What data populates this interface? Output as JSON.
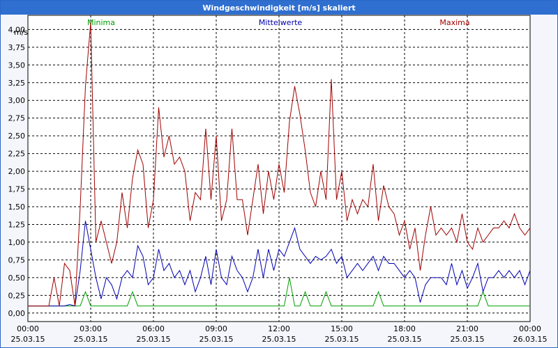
{
  "chart_data": {
    "type": "line",
    "title": "Windgeschwindigkeit [m/s] skaliert",
    "y_label": "m/s",
    "xlim": [
      0,
      24
    ],
    "ylim": [
      -0.12,
      4.2
    ],
    "grid": true,
    "xticks": [
      {
        "value": 0,
        "label": "00:00\n25.03.15"
      },
      {
        "value": 3,
        "label": "03:00\n25.03.15"
      },
      {
        "value": 6,
        "label": "06:00\n25.03.15"
      },
      {
        "value": 9,
        "label": "09:00\n25.03.15"
      },
      {
        "value": 12,
        "label": "12:00\n25.03.15"
      },
      {
        "value": 15,
        "label": "15:00\n25.03.15"
      },
      {
        "value": 18,
        "label": "18:00\n25.03.15"
      },
      {
        "value": 21,
        "label": "21:00\n25.03.15"
      },
      {
        "value": 24,
        "label": "00:00\n26.03.15"
      }
    ],
    "yticks": [
      {
        "value": 0,
        "label": "0,00"
      },
      {
        "value": 0.25,
        "label": "0,25"
      },
      {
        "value": 0.5,
        "label": "0,50"
      },
      {
        "value": 0.75,
        "label": "0,75"
      },
      {
        "value": 1,
        "label": "1,00"
      },
      {
        "value": 1.25,
        "label": "1,25"
      },
      {
        "value": 1.5,
        "label": "1,50"
      },
      {
        "value": 1.75,
        "label": "1,75"
      },
      {
        "value": 2,
        "label": "2,00"
      },
      {
        "value": 2.25,
        "label": "2,25"
      },
      {
        "value": 2.5,
        "label": "2,50"
      },
      {
        "value": 2.75,
        "label": "2,75"
      },
      {
        "value": 3,
        "label": "3,00"
      },
      {
        "value": 3.25,
        "label": "3,25"
      },
      {
        "value": 3.5,
        "label": "3,50"
      },
      {
        "value": 3.75,
        "label": "3,75"
      },
      {
        "value": 4,
        "label": "4,00"
      }
    ],
    "x": [
      0,
      0.25,
      0.5,
      0.75,
      1,
      1.25,
      1.5,
      1.75,
      2,
      2.25,
      2.5,
      2.75,
      3,
      3.25,
      3.5,
      3.75,
      4,
      4.25,
      4.5,
      4.75,
      5,
      5.25,
      5.5,
      5.75,
      6,
      6.25,
      6.5,
      6.75,
      7,
      7.25,
      7.5,
      7.75,
      8,
      8.25,
      8.5,
      8.75,
      9,
      9.25,
      9.5,
      9.75,
      10,
      10.25,
      10.5,
      10.75,
      11,
      11.25,
      11.5,
      11.75,
      12,
      12.25,
      12.5,
      12.75,
      13,
      13.25,
      13.5,
      13.75,
      14,
      14.25,
      14.5,
      14.75,
      15,
      15.25,
      15.5,
      15.75,
      16,
      16.25,
      16.5,
      16.75,
      17,
      17.25,
      17.5,
      17.75,
      18,
      18.25,
      18.5,
      18.75,
      19,
      19.25,
      19.5,
      19.75,
      20,
      20.25,
      20.5,
      20.75,
      21,
      21.25,
      21.5,
      21.75,
      22,
      22.25,
      22.5,
      22.75,
      23,
      23.25,
      23.5,
      23.75,
      24
    ],
    "series": [
      {
        "name": "Minima",
        "color": "#00a000",
        "values": [
          0.1,
          0.1,
          0.1,
          0.1,
          0.1,
          0.1,
          0.1,
          0.1,
          0.1,
          0.1,
          0.1,
          0.3,
          0.1,
          0.1,
          0.1,
          0.1,
          0.1,
          0.1,
          0.1,
          0.1,
          0.3,
          0.1,
          0.1,
          0.1,
          0.1,
          0.1,
          0.1,
          0.1,
          0.1,
          0.1,
          0.1,
          0.1,
          0.1,
          0.1,
          0.1,
          0.1,
          0.1,
          0.1,
          0.1,
          0.1,
          0.1,
          0.1,
          0.1,
          0.1,
          0.1,
          0.1,
          0.1,
          0.1,
          0.1,
          0.1,
          0.5,
          0.1,
          0.1,
          0.3,
          0.1,
          0.1,
          0.1,
          0.3,
          0.1,
          0.1,
          0.1,
          0.1,
          0.1,
          0.1,
          0.1,
          0.1,
          0.1,
          0.3,
          0.1,
          0.1,
          0.1,
          0.1,
          0.1,
          0.1,
          0.1,
          0.1,
          0.1,
          0.1,
          0.1,
          0.1,
          0.1,
          0.1,
          0.1,
          0.1,
          0.1,
          0.1,
          0.1,
          0.3,
          0.1,
          0.1,
          0.1,
          0.1,
          0.1,
          0.1,
          0.1,
          0.1,
          0.1
        ]
      },
      {
        "name": "Mittelwerte",
        "color": "#0000b0",
        "values": [
          0.1,
          0.1,
          0.1,
          0.1,
          0.1,
          0.1,
          0.1,
          0.1,
          0.12,
          0.1,
          0.6,
          1.3,
          0.9,
          0.5,
          0.2,
          0.5,
          0.4,
          0.2,
          0.5,
          0.6,
          0.5,
          0.95,
          0.8,
          0.4,
          0.5,
          0.9,
          0.6,
          0.7,
          0.5,
          0.6,
          0.4,
          0.6,
          0.3,
          0.5,
          0.8,
          0.4,
          0.9,
          0.5,
          0.4,
          0.8,
          0.6,
          0.5,
          0.3,
          0.5,
          0.9,
          0.5,
          0.9,
          0.6,
          0.9,
          0.8,
          1.0,
          1.2,
          0.9,
          0.8,
          0.7,
          0.8,
          0.75,
          0.8,
          0.9,
          0.7,
          0.8,
          0.5,
          0.6,
          0.7,
          0.6,
          0.7,
          0.8,
          0.6,
          0.8,
          0.7,
          0.7,
          0.6,
          0.5,
          0.6,
          0.5,
          0.15,
          0.4,
          0.5,
          0.5,
          0.5,
          0.4,
          0.7,
          0.4,
          0.6,
          0.35,
          0.5,
          0.7,
          0.3,
          0.5,
          0.5,
          0.6,
          0.5,
          0.6,
          0.5,
          0.6,
          0.4,
          0.6
        ]
      },
      {
        "name": "Maxima",
        "color": "#a00000",
        "values": [
          0.1,
          0.1,
          0.1,
          0.1,
          0.1,
          0.5,
          0.1,
          0.7,
          0.6,
          0.1,
          1.5,
          3.2,
          4.1,
          1.0,
          1.3,
          1.0,
          0.7,
          1.0,
          1.7,
          1.2,
          1.9,
          2.3,
          2.1,
          1.2,
          1.6,
          2.9,
          2.2,
          2.5,
          2.1,
          2.2,
          2.0,
          1.3,
          1.7,
          1.6,
          2.6,
          1.6,
          2.5,
          1.3,
          1.6,
          2.6,
          1.6,
          1.6,
          1.1,
          1.6,
          2.1,
          1.4,
          2.0,
          1.6,
          2.1,
          1.7,
          2.7,
          3.2,
          2.8,
          2.3,
          1.7,
          1.5,
          2.0,
          1.6,
          3.3,
          1.6,
          2.0,
          1.3,
          1.6,
          1.4,
          1.6,
          1.5,
          2.1,
          1.3,
          1.8,
          1.5,
          1.4,
          1.1,
          1.3,
          0.9,
          1.2,
          0.6,
          1.1,
          1.5,
          1.1,
          1.2,
          1.1,
          1.2,
          1.0,
          1.4,
          1.0,
          0.9,
          1.2,
          1.0,
          1.1,
          1.2,
          1.2,
          1.3,
          1.2,
          1.4,
          1.2,
          1.1,
          1.2
        ]
      }
    ]
  }
}
